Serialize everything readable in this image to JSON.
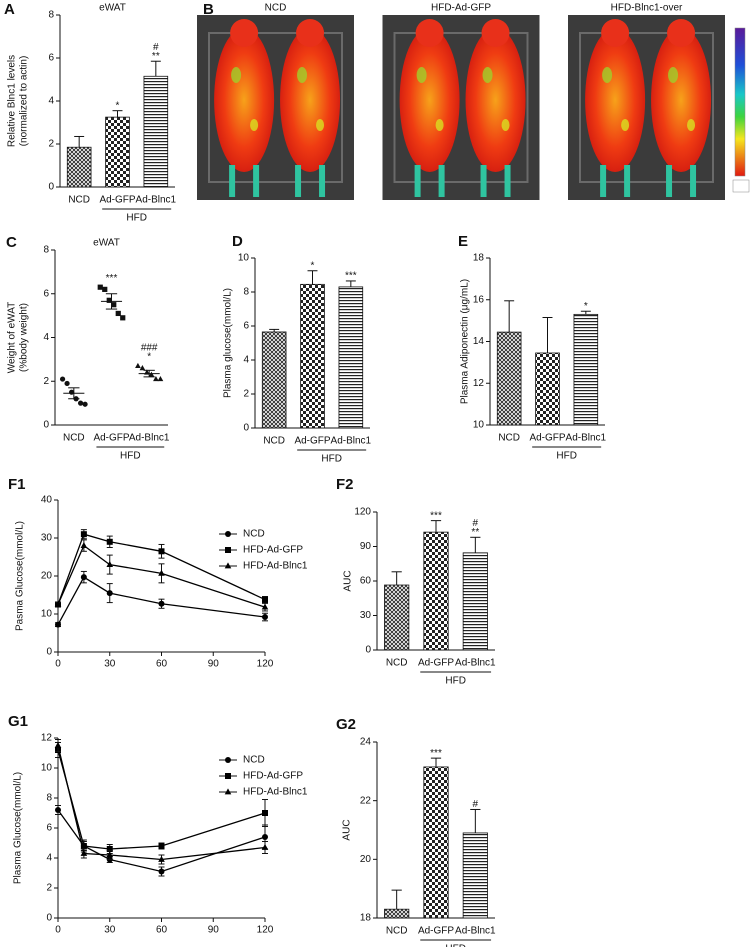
{
  "chart_data": [
    {
      "panel": "A",
      "type": "bar",
      "title": "eWAT",
      "y_label": [
        "Relative Blnc1 levels",
        "(normalized to actin)"
      ],
      "categories": [
        "NCD",
        "Ad-GFP",
        "Ad-Blnc1"
      ],
      "values": [
        1.85,
        3.25,
        5.15
      ],
      "errors": [
        0.5,
        0.3,
        0.7
      ],
      "annotations": [
        [],
        [
          "*"
        ],
        [
          "#",
          "**"
        ]
      ],
      "group_label": "HFD",
      "ylim": [
        0,
        8
      ],
      "yticks": [
        0,
        2,
        4,
        6,
        8
      ]
    },
    {
      "panel": "B",
      "type": "image",
      "labels": [
        "NCD",
        "HFD-Ad-GFP",
        "HFD-Blnc1-over"
      ]
    },
    {
      "panel": "C",
      "type": "dot",
      "title": "eWAT",
      "y_label": [
        "Weight of eWAT",
        "(%body weight)"
      ],
      "categories": [
        "NCD",
        "Ad-GFP",
        "Ad-Blnc1"
      ],
      "values": [
        1.45,
        5.65,
        2.35
      ],
      "errors": [
        0.25,
        0.35,
        0.15
      ],
      "points": [
        [
          2.1,
          1.9,
          1.5,
          1.2,
          1.0,
          0.95
        ],
        [
          6.3,
          6.2,
          5.7,
          5.5,
          5.1,
          4.9
        ],
        [
          2.7,
          2.6,
          2.4,
          2.3,
          2.1,
          2.1
        ]
      ],
      "markers": [
        "circle",
        "square",
        "triangle"
      ],
      "annotations": [
        [],
        [
          "***"
        ],
        [
          "###",
          "*"
        ]
      ],
      "group_label": "HFD",
      "ylim": [
        0,
        8
      ],
      "yticks": [
        0,
        2,
        4,
        6,
        8
      ]
    },
    {
      "panel": "D",
      "type": "bar",
      "y_label": "Plasma glucose(mmol/L)",
      "categories": [
        "NCD",
        "Ad-GFP",
        "Ad-Blnc1"
      ],
      "values": [
        5.65,
        8.45,
        8.3
      ],
      "errors": [
        0.15,
        0.8,
        0.35
      ],
      "annotations": [
        [],
        [
          "*"
        ],
        [
          "***"
        ]
      ],
      "group_label": "HFD",
      "ylim": [
        0,
        10
      ],
      "yticks": [
        0,
        2,
        4,
        6,
        8,
        10
      ]
    },
    {
      "panel": "E",
      "type": "bar",
      "y_label": "Plasma Adiponectin (μg/mL)",
      "categories": [
        "NCD",
        "Ad-GFP",
        "Ad-Blnc1"
      ],
      "values": [
        14.45,
        13.45,
        15.3
      ],
      "errors": [
        1.5,
        1.7,
        0.15
      ],
      "annotations": [
        [],
        [],
        [
          "*"
        ]
      ],
      "group_label": "HFD",
      "ylim": [
        10,
        18
      ],
      "yticks": [
        10,
        12,
        14,
        16,
        18
      ]
    },
    {
      "panel": "F1",
      "type": "line",
      "y_label": "Pasma Glucose(mmol/L)",
      "x": [
        0,
        15,
        30,
        60,
        120
      ],
      "xlim": [
        0,
        120
      ],
      "xticks": [
        0,
        30,
        60,
        90,
        120
      ],
      "ylim": [
        0,
        40
      ],
      "yticks": [
        0,
        10,
        20,
        30,
        40
      ],
      "legend": "upper right",
      "series": [
        {
          "name": "NCD",
          "marker": "circle",
          "color": "#000000",
          "values": [
            7.2,
            19.7,
            15.5,
            12.7,
            9.2
          ],
          "errors": [
            0.5,
            1.5,
            2.5,
            1.2,
            1.0
          ]
        },
        {
          "name": "HFD-Ad-GFP",
          "marker": "square",
          "color": "#000000",
          "values": [
            12.5,
            31,
            29,
            26.5,
            13.8
          ],
          "errors": [
            0.5,
            1.2,
            1.5,
            1.8,
            0.8
          ]
        },
        {
          "name": "HFD-Ad-Blnc1",
          "marker": "triangle",
          "color": "#000000",
          "values": [
            12.5,
            28,
            23,
            20.7,
            11.8
          ],
          "errors": [
            0.5,
            1.5,
            2.5,
            2.5,
            1.0
          ]
        }
      ]
    },
    {
      "panel": "F2",
      "type": "bar",
      "y_label": "AUC",
      "categories": [
        "NCD",
        "Ad-GFP",
        "Ad-Blnc1"
      ],
      "values": [
        56.5,
        102.5,
        84.5
      ],
      "errors": [
        11.5,
        10,
        13.5
      ],
      "annotations": [
        [],
        [
          "***"
        ],
        [
          "#",
          "**"
        ]
      ],
      "group_label": "HFD",
      "ylim": [
        0,
        120
      ],
      "yticks": [
        0,
        30,
        60,
        90,
        120
      ]
    },
    {
      "panel": "G1",
      "type": "line",
      "y_label": "Plasma Glucose(mmol/L)",
      "x": [
        0,
        15,
        30,
        60,
        120
      ],
      "xlim": [
        0,
        120
      ],
      "xticks": [
        0,
        30,
        60,
        90,
        120
      ],
      "ylim": [
        0,
        12
      ],
      "yticks": [
        0,
        2,
        4,
        6,
        8,
        10,
        12
      ],
      "legend": "upper right",
      "series": [
        {
          "name": "NCD",
          "marker": "circle",
          "color": "#000000",
          "values": [
            7.2,
            4.8,
            3.9,
            3.1,
            5.4
          ],
          "errors": [
            0.3,
            0.3,
            0.2,
            0.3,
            0.8
          ]
        },
        {
          "name": "HFD-Ad-GFP",
          "marker": "square",
          "color": "#000000",
          "values": [
            11.2,
            4.8,
            4.6,
            4.8,
            7.0
          ],
          "errors": [
            0.5,
            0.4,
            0.3,
            0.2,
            0.9
          ]
        },
        {
          "name": "HFD-Ad-Blnc1",
          "marker": "triangle",
          "color": "#000000",
          "values": [
            11.5,
            4.3,
            4.2,
            3.9,
            4.7
          ],
          "errors": [
            0.4,
            0.3,
            0.3,
            0.3,
            0.4
          ]
        }
      ]
    },
    {
      "panel": "G2",
      "type": "bar",
      "y_label": "AUC",
      "categories": [
        "NCD",
        "Ad-GFP",
        "Ad-Blnc1"
      ],
      "values": [
        18.3,
        23.15,
        20.9
      ],
      "errors": [
        0.65,
        0.3,
        0.8
      ],
      "annotations": [
        [],
        [
          "***"
        ],
        [
          "#"
        ]
      ],
      "group_label": "HFD",
      "ylim": [
        18,
        24
      ],
      "yticks": [
        18,
        20,
        22,
        24
      ]
    }
  ]
}
